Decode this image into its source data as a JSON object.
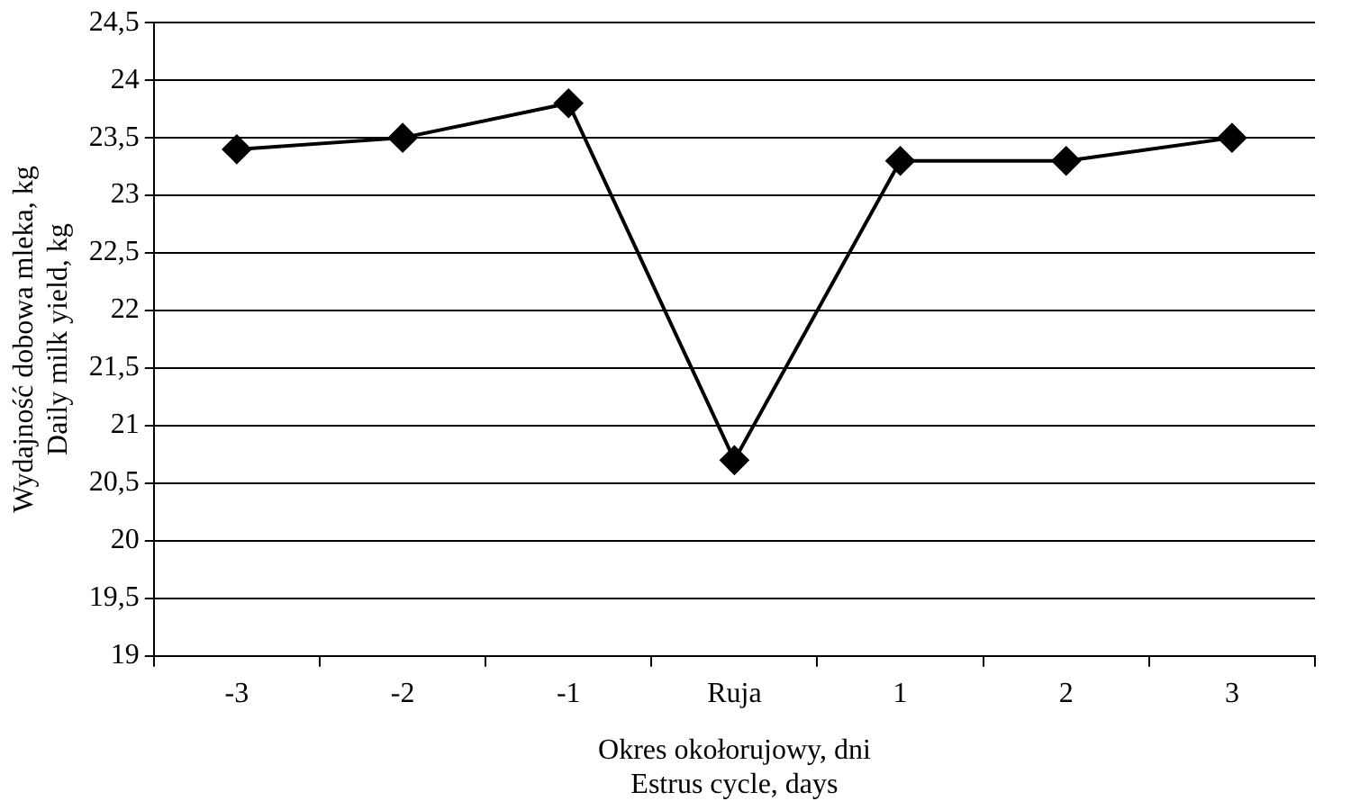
{
  "chart_data": {
    "type": "line",
    "xlabel": "Okres okołorujowy, dni\nEstrus cycle, days",
    "ylabel": "Wydajność dobowa mleka, kg\nDaily milk yield, kg",
    "categories": [
      "-3",
      "-2",
      "-1",
      "Ruja",
      "1",
      "2",
      "3"
    ],
    "series": [
      {
        "color": "#000000",
        "values": [
          23.4,
          23.5,
          23.8,
          20.7,
          23.3,
          23.3,
          23.5
        ]
      }
    ],
    "ylim": [
      19,
      24.5
    ],
    "yticks": [
      19,
      {
        "value": 19.5,
        "label": "19,5"
      },
      20,
      {
        "value": 20.5,
        "label": "20,5"
      },
      21,
      {
        "value": 21.5,
        "label": "21,5"
      },
      22,
      {
        "value": 22.5,
        "label": "22,5"
      },
      23,
      {
        "value": 23.5,
        "label": "23,5"
      },
      24,
      {
        "value": 24.5,
        "label": "24,5"
      }
    ],
    "grid": "y",
    "legend": false,
    "marker": "diamond",
    "line_style": "solid"
  }
}
